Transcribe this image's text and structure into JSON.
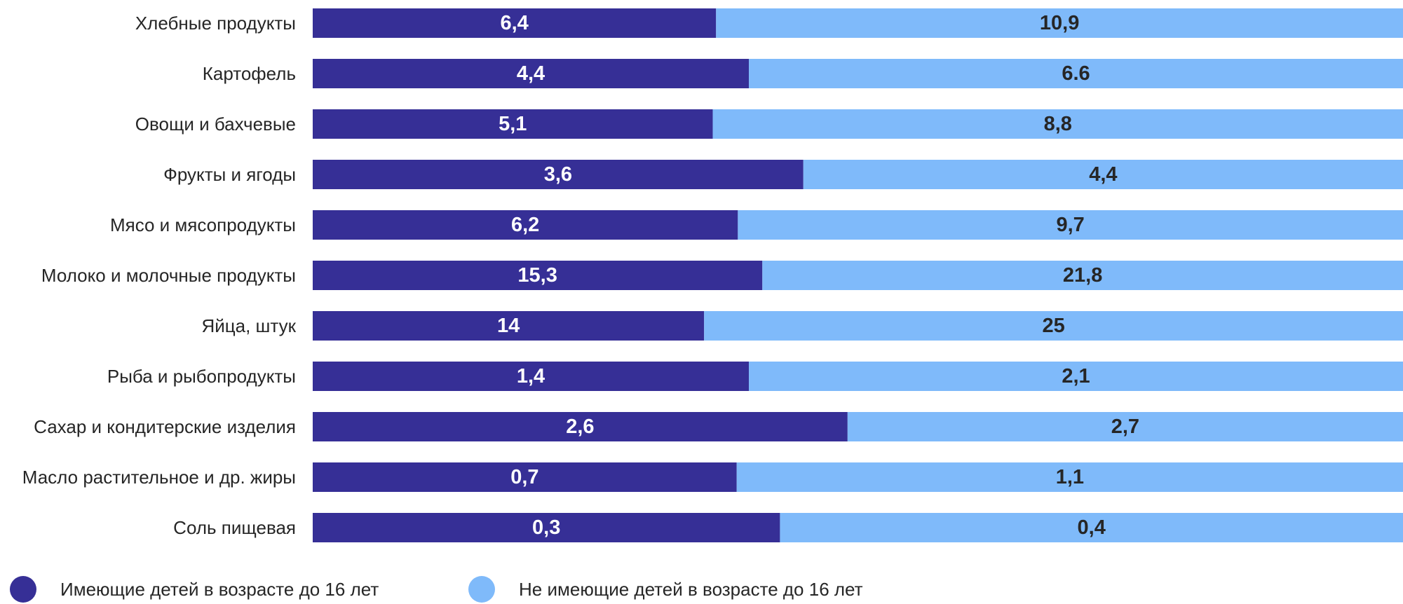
{
  "chart_data": {
    "type": "bar",
    "stacked": "percent",
    "orientation": "horizontal",
    "categories": [
      "Хлебные продукты",
      "Картофель",
      "Овощи и бахчевые",
      "Фрукты и ягоды",
      "Мясо и мясопродукты",
      "Молоко и молочные продукты",
      "Яйца, штук",
      "Рыба и рыбопродукты",
      "Сахар и кондитерские изделия",
      "Масло  растительное и др. жиры",
      "Соль пищевая"
    ],
    "series": [
      {
        "name": "Имеющие детей в возрасте до 16 лет",
        "color": "#362f96",
        "values": [
          6.4,
          4.4,
          5.1,
          3.6,
          6.2,
          15.3,
          14,
          1.4,
          2.6,
          0.7,
          0.3
        ],
        "labels": [
          "6,4",
          "4,4",
          "5,1",
          "3,6",
          "6,2",
          "15,3",
          "14",
          "1,4",
          "2,6",
          "0,7",
          "0,3"
        ]
      },
      {
        "name": "Не имеющие детей в возрасте до 16 лет",
        "color": "#7fbafa",
        "values": [
          10.9,
          6.6,
          8.8,
          4.4,
          9.7,
          21.8,
          25,
          2.1,
          2.7,
          1.1,
          0.4
        ],
        "labels": [
          "10,9",
          "6.6",
          "8,8",
          "4,4",
          "9,7",
          "21,8",
          "25",
          "2,1",
          "2,7",
          "1,1",
          "0,4"
        ]
      }
    ],
    "legend_position": "bottom",
    "grid": false
  }
}
